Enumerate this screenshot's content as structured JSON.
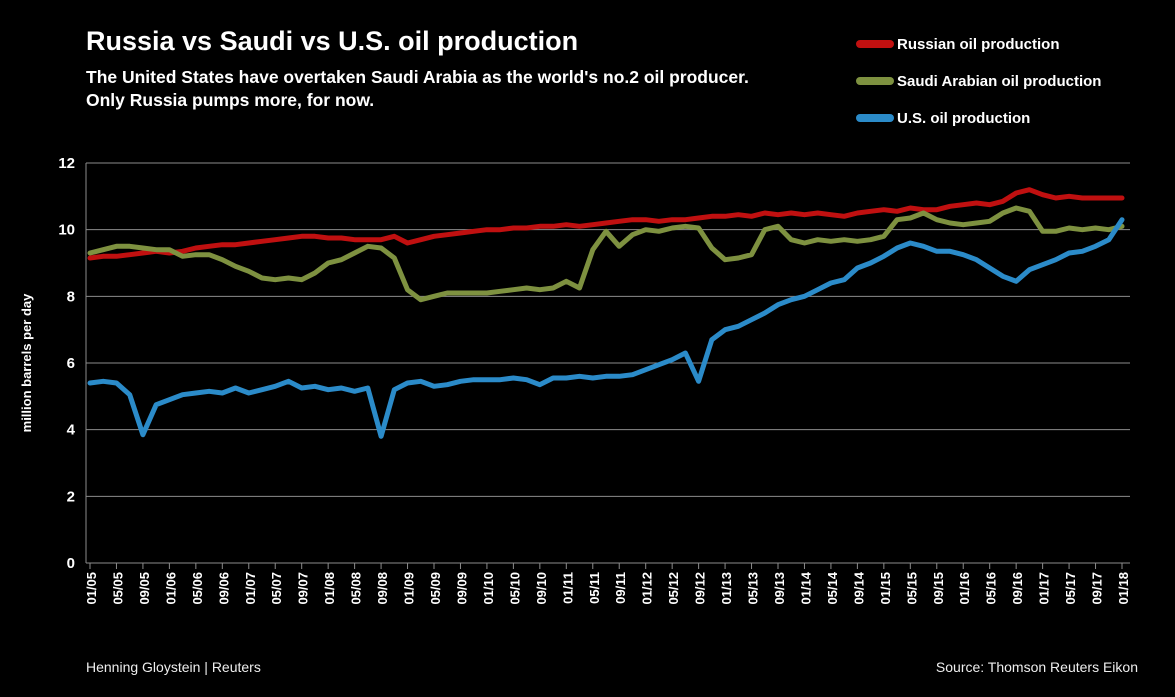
{
  "footer": {
    "credit": "Henning Gloystein | Reuters",
    "source": "Source: Thomson Reuters Eikon"
  },
  "chart_data": {
    "type": "line",
    "title": "Russia vs Saudi vs U.S. oil production",
    "subtitle": [
      "The United States have overtaken Saudi Arabia as the world's no.2 oil producer.",
      "Only Russia pumps more, for now."
    ],
    "ylabel": "million barrels per day",
    "xlabel": "",
    "ylim": [
      0,
      12
    ],
    "yticks": [
      0,
      2,
      4,
      6,
      8,
      10,
      12
    ],
    "grid": "horizontal",
    "legend_position": "top-right",
    "background": "#000000",
    "gridline_color": "#8c8c8c",
    "x_unit": "month (MM/YY), Jan 2005 - Jan 2018, points every 2 months",
    "x": [
      "01/05",
      "03/05",
      "05/05",
      "07/05",
      "09/05",
      "11/05",
      "01/06",
      "03/06",
      "05/06",
      "07/06",
      "09/06",
      "11/06",
      "01/07",
      "03/07",
      "05/07",
      "07/07",
      "09/07",
      "11/07",
      "01/08",
      "03/08",
      "05/08",
      "07/08",
      "09/08",
      "11/08",
      "01/09",
      "03/09",
      "05/09",
      "07/09",
      "09/09",
      "11/09",
      "01/10",
      "03/10",
      "05/10",
      "07/10",
      "09/10",
      "11/10",
      "01/11",
      "03/11",
      "05/11",
      "07/11",
      "09/11",
      "11/11",
      "01/12",
      "03/12",
      "05/12",
      "07/12",
      "09/12",
      "11/12",
      "01/13",
      "03/13",
      "05/13",
      "07/13",
      "09/13",
      "11/13",
      "01/14",
      "03/14",
      "05/14",
      "07/14",
      "09/14",
      "11/14",
      "01/15",
      "03/15",
      "05/15",
      "07/15",
      "09/15",
      "11/15",
      "01/16",
      "03/16",
      "05/16",
      "07/16",
      "09/16",
      "11/16",
      "01/17",
      "03/17",
      "05/17",
      "07/17",
      "09/17",
      "11/17",
      "01/18"
    ],
    "x_tick_labels": [
      "01/05",
      "05/05",
      "09/05",
      "01/06",
      "05/06",
      "09/06",
      "01/07",
      "05/07",
      "09/07",
      "01/08",
      "05/08",
      "09/08",
      "01/09",
      "05/09",
      "09/09",
      "01/10",
      "05/10",
      "09/10",
      "01/11",
      "05/11",
      "09/11",
      "01/12",
      "05/12",
      "09/12",
      "01/13",
      "05/13",
      "09/13",
      "01/14",
      "05/14",
      "09/14",
      "01/15",
      "05/15",
      "09/15",
      "01/16",
      "05/16",
      "09/16",
      "01/17",
      "05/17",
      "09/17",
      "01/18"
    ],
    "series": [
      {
        "name": "Russian oil production",
        "color": "#c01010",
        "values": [
          9.15,
          9.2,
          9.2,
          9.25,
          9.3,
          9.35,
          9.3,
          9.35,
          9.45,
          9.5,
          9.55,
          9.55,
          9.6,
          9.65,
          9.7,
          9.75,
          9.8,
          9.8,
          9.75,
          9.75,
          9.7,
          9.7,
          9.7,
          9.8,
          9.6,
          9.7,
          9.8,
          9.85,
          9.9,
          9.95,
          10.0,
          10.0,
          10.05,
          10.05,
          10.1,
          10.1,
          10.15,
          10.1,
          10.15,
          10.2,
          10.25,
          10.3,
          10.3,
          10.25,
          10.3,
          10.3,
          10.35,
          10.4,
          10.4,
          10.45,
          10.4,
          10.5,
          10.45,
          10.5,
          10.45,
          10.5,
          10.45,
          10.4,
          10.5,
          10.55,
          10.6,
          10.55,
          10.65,
          10.6,
          10.6,
          10.7,
          10.75,
          10.8,
          10.75,
          10.85,
          11.1,
          11.2,
          11.05,
          10.95,
          11.0,
          10.95,
          10.95,
          10.95,
          10.95
        ]
      },
      {
        "name": "Saudi Arabian oil production",
        "color": "#7e9140",
        "values": [
          9.3,
          9.4,
          9.5,
          9.5,
          9.45,
          9.4,
          9.4,
          9.2,
          9.25,
          9.25,
          9.1,
          8.9,
          8.75,
          8.55,
          8.5,
          8.55,
          8.5,
          8.7,
          9.0,
          9.1,
          9.3,
          9.5,
          9.45,
          9.15,
          8.2,
          7.9,
          8.0,
          8.1,
          8.1,
          8.1,
          8.1,
          8.15,
          8.2,
          8.25,
          8.2,
          8.25,
          8.45,
          8.25,
          9.4,
          9.95,
          9.5,
          9.85,
          10.0,
          9.95,
          10.05,
          10.1,
          10.05,
          9.45,
          9.1,
          9.15,
          9.25,
          10.0,
          10.1,
          9.7,
          9.6,
          9.7,
          9.65,
          9.7,
          9.65,
          9.7,
          9.8,
          10.3,
          10.35,
          10.5,
          10.3,
          10.2,
          10.15,
          10.2,
          10.25,
          10.5,
          10.65,
          10.55,
          9.95,
          9.95,
          10.05,
          10.0,
          10.05,
          10.0,
          10.1
        ]
      },
      {
        "name": "U.S. oil production",
        "color": "#2b8bc9",
        "values": [
          5.4,
          5.45,
          5.4,
          5.05,
          3.85,
          4.75,
          4.9,
          5.05,
          5.1,
          5.15,
          5.1,
          5.25,
          5.1,
          5.2,
          5.3,
          5.45,
          5.25,
          5.3,
          5.2,
          5.25,
          5.15,
          5.25,
          3.8,
          5.2,
          5.4,
          5.45,
          5.3,
          5.35,
          5.45,
          5.5,
          5.5,
          5.5,
          5.55,
          5.5,
          5.35,
          5.55,
          5.55,
          5.6,
          5.55,
          5.6,
          5.6,
          5.65,
          5.8,
          5.95,
          6.1,
          6.3,
          5.45,
          6.7,
          7.0,
          7.1,
          7.3,
          7.5,
          7.75,
          7.9,
          8.0,
          8.2,
          8.4,
          8.5,
          8.85,
          9.0,
          9.2,
          9.45,
          9.6,
          9.5,
          9.35,
          9.35,
          9.25,
          9.1,
          8.85,
          8.6,
          8.45,
          8.8,
          8.95,
          9.1,
          9.3,
          9.35,
          9.5,
          9.7,
          10.3
        ]
      }
    ]
  }
}
